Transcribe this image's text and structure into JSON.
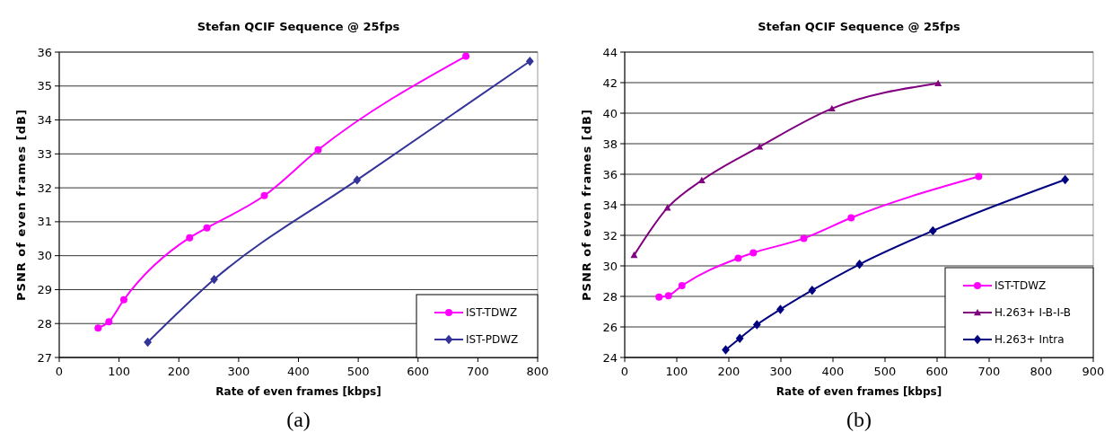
{
  "chart_data": [
    {
      "type": "line",
      "title": "Stefan QCIF Sequence @ 25fps",
      "xlabel": "Rate of even frames [kbps]",
      "ylabel": "PSNR of even frames [dB]",
      "xlim": [
        0,
        800
      ],
      "xticks": [
        0,
        100,
        200,
        300,
        400,
        500,
        600,
        700,
        800
      ],
      "ylim": [
        27,
        36
      ],
      "yticks": [
        27,
        28,
        29,
        30,
        31,
        32,
        33,
        34,
        35,
        36
      ],
      "grid": "y",
      "legend": "bottom right",
      "annotations": [
        "(a)"
      ],
      "series": [
        {
          "name": "IST-TDWZ",
          "color": "#ff00ff",
          "marker": "circle",
          "x": [
            65,
            83,
            108,
            218,
            247,
            343,
            433,
            680
          ],
          "values": [
            27.87,
            28.05,
            28.7,
            30.53,
            30.82,
            31.77,
            33.12,
            35.88
          ]
        },
        {
          "name": "IST-PDWZ",
          "color": "#333399",
          "marker": "diamond",
          "x": [
            148,
            259,
            498,
            787
          ],
          "values": [
            27.45,
            29.3,
            32.23,
            35.73
          ]
        }
      ]
    },
    {
      "type": "line",
      "title": "Stefan QCIF Sequence @ 25fps",
      "xlabel": "Rate of even frames [kbps]",
      "ylabel": "PSNR of even frames [dB]",
      "xlim": [
        0,
        900
      ],
      "xticks": [
        0,
        100,
        200,
        300,
        400,
        500,
        600,
        700,
        800,
        900
      ],
      "ylim": [
        24,
        44
      ],
      "yticks": [
        24,
        26,
        28,
        30,
        32,
        34,
        36,
        38,
        40,
        42,
        44
      ],
      "grid": "y",
      "legend": "bottom right",
      "annotations": [
        "(b)"
      ],
      "series": [
        {
          "name": "IST-TDWZ",
          "color": "#ff00ff",
          "marker": "circle",
          "x": [
            66,
            84,
            110,
            218,
            247,
            344,
            435,
            680
          ],
          "values": [
            27.95,
            28.05,
            28.7,
            30.5,
            30.85,
            31.8,
            33.15,
            35.85
          ]
        },
        {
          "name": "H.263+ I-B-I-B",
          "color": "#800080",
          "marker": "triangle",
          "x": [
            18,
            82,
            148,
            259,
            398,
            602
          ],
          "values": [
            30.7,
            33.8,
            35.6,
            37.8,
            40.3,
            41.95
          ]
        },
        {
          "name": "H.263+ Intra",
          "color": "#000080",
          "marker": "diamond",
          "x": [
            194,
            221,
            254,
            299,
            360,
            451,
            592,
            846
          ],
          "values": [
            24.5,
            25.25,
            26.15,
            27.15,
            28.4,
            30.1,
            32.3,
            35.65
          ]
        }
      ]
    }
  ]
}
